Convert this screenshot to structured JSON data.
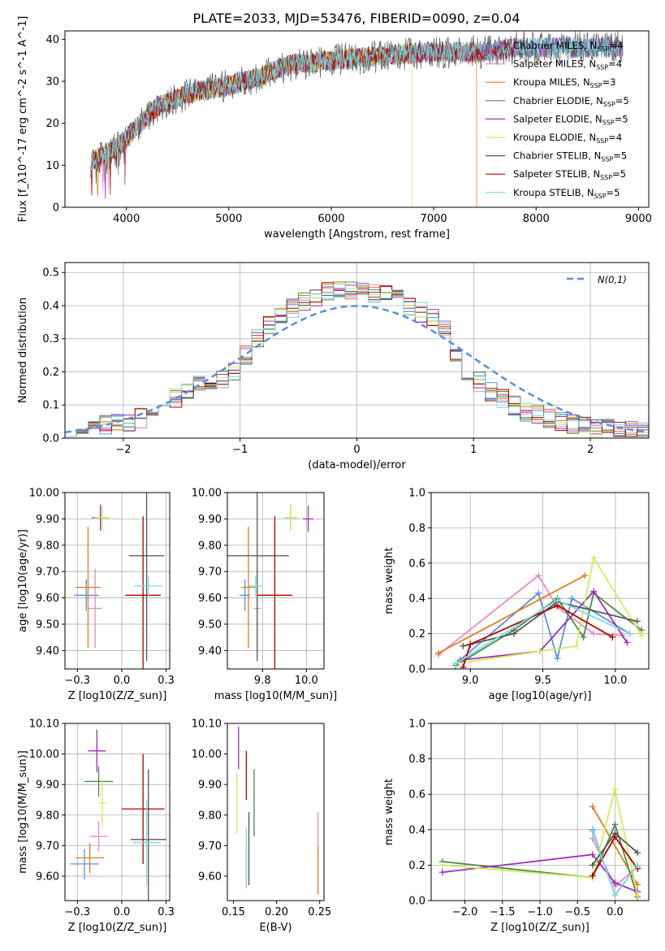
{
  "figure_title": "PLATE=2033, MJD=53476, FIBERID=0090, z=0.04",
  "series_colors": [
    "#5b8fdd",
    "#e78ac3",
    "#e07b1f",
    "#4a8a4a",
    "#9b30b5",
    "#d4ea5b",
    "#555555",
    "#b00000",
    "#7fd7e0"
  ],
  "chart_data": [
    {
      "id": "spectrum",
      "type": "line",
      "xlabel": "wavelength [Angstrom, rest frame]",
      "ylabel": "Flux [f_λ10^-17 erg cm^-2 s^-1 A^-1]",
      "xlim": [
        3400,
        9100
      ],
      "ylim": [
        0,
        42
      ],
      "xticks": [
        4000,
        5000,
        6000,
        7000,
        8000,
        9000
      ],
      "yticks": [
        0,
        10,
        20,
        30,
        40
      ],
      "grid": false,
      "legend_position": "top-right",
      "series": [
        {
          "name": "Chabrier MILES, N_SSP=4",
          "color": "#5b8fdd"
        },
        {
          "name": "Salpeter MILES, N_SSP=4",
          "color": "#e78ac3"
        },
        {
          "name": "Kroupa MILES, N_SSP=3",
          "color": "#e07b1f"
        },
        {
          "name": "Chabrier ELODIE, N_SSP=5",
          "color": "#4a8a4a"
        },
        {
          "name": "Salpeter ELODIE, N_SSP=5",
          "color": "#9b30b5"
        },
        {
          "name": "Kroupa ELODIE, N_SSP=4",
          "color": "#d4ea5b"
        },
        {
          "name": "Chabrier STELIB, N_SSP=5",
          "color": "#555555"
        },
        {
          "name": "Salpeter STELIB, N_SSP=5",
          "color": "#b00000"
        },
        {
          "name": "Kroupa STELIB, N_SSP=5",
          "color": "#7fd7e0"
        }
      ],
      "continuum": {
        "x": [
          3650,
          3900,
          4100,
          4300,
          4600,
          5000,
          5300,
          5600,
          6000,
          6500,
          7000,
          7500,
          7800
        ],
        "y": [
          11,
          14,
          19,
          24,
          27,
          29,
          31,
          34,
          35,
          36,
          37,
          37,
          38
        ]
      }
    },
    {
      "id": "residuals",
      "type": "histogram",
      "xlabel": "(data-model)/error",
      "ylabel": "Normed distribution",
      "xlim": [
        -2.5,
        2.5
      ],
      "ylim": [
        0,
        0.53
      ],
      "xticks": [
        -2,
        -1,
        0,
        1,
        2
      ],
      "yticks": [
        0.0,
        0.1,
        0.2,
        0.3,
        0.4,
        0.5
      ],
      "grid": true,
      "legend_position": "top-right",
      "reference": {
        "name": "N(0,1)",
        "color": "#5b8fdd"
      },
      "bin_width": 0.1,
      "profile": [
        0.02,
        0.03,
        0.04,
        0.04,
        0.05,
        0.05,
        0.06,
        0.08,
        0.1,
        0.12,
        0.14,
        0.16,
        0.17,
        0.18,
        0.2,
        0.25,
        0.3,
        0.34,
        0.37,
        0.39,
        0.41,
        0.42,
        0.44,
        0.45,
        0.45,
        0.45,
        0.44,
        0.44,
        0.42,
        0.4,
        0.38,
        0.36,
        0.33,
        0.26,
        0.2,
        0.17,
        0.14,
        0.12,
        0.1,
        0.08,
        0.07,
        0.06,
        0.05,
        0.04,
        0.04,
        0.03,
        0.03,
        0.02,
        0.02,
        0.02
      ]
    },
    {
      "id": "age-vs-Z",
      "type": "scatter",
      "xlabel": "Z [log10(Z/Z_sun)]",
      "ylabel": "age [log10(age/yr)]",
      "xlim": [
        -0.32,
        0.27
      ],
      "ylim": [
        9.33,
        10.0
      ],
      "xticks": [
        -0.25,
        0.0,
        0.25
      ],
      "yticks": [
        9.4,
        9.5,
        9.6,
        9.7,
        9.8,
        9.9,
        10.0
      ],
      "grid": true,
      "points": [
        {
          "x": -0.2,
          "y": 9.61,
          "xerr": 0.07,
          "yerr": 0.06,
          "color": "#5b8fdd"
        },
        {
          "x": -0.15,
          "y": 9.56,
          "xerr": 0.04,
          "yerr": 0.15,
          "color": "#e78ac3"
        },
        {
          "x": -0.19,
          "y": 9.64,
          "xerr": 0.07,
          "yerr": 0.23,
          "color": "#e07b1f"
        },
        {
          "x": -0.12,
          "y": 9.905,
          "xerr": 0.05,
          "yerr": 0.04,
          "color": "#4a8a4a"
        },
        {
          "x": -0.12,
          "y": 9.905,
          "xerr": 0.02,
          "yerr": 0.05,
          "color": "#9b30b5"
        },
        {
          "x": -0.11,
          "y": 9.905,
          "xerr": 0.04,
          "yerr": 0.05,
          "color": "#d4ea5b"
        },
        {
          "x": 0.14,
          "y": 9.76,
          "xerr": 0.1,
          "yerr": 0.4,
          "color": "#555555"
        },
        {
          "x": 0.12,
          "y": 9.61,
          "xerr": 0.1,
          "yerr": 0.3,
          "color": "#b00000"
        },
        {
          "x": 0.15,
          "y": 9.645,
          "xerr": 0.08,
          "yerr": 0.04,
          "color": "#7fd7e0"
        }
      ]
    },
    {
      "id": "age-vs-mass",
      "type": "scatter",
      "xlabel": "mass [log10(M/M_sun)]",
      "ylabel": "",
      "xlim": [
        9.55,
        10.1
      ],
      "ylim": [
        9.33,
        10.0
      ],
      "xticks": [
        9.75,
        10.0
      ],
      "yticks": [
        9.4,
        9.5,
        9.6,
        9.7,
        9.8,
        9.9,
        10.0
      ],
      "grid": true,
      "points": [
        {
          "x": 9.65,
          "y": 9.61,
          "xerr": 0.03,
          "yerr": 0.06,
          "color": "#5b8fdd"
        },
        {
          "x": 9.72,
          "y": 9.56,
          "xerr": 0.02,
          "yerr": 0.15,
          "color": "#e78ac3"
        },
        {
          "x": 9.67,
          "y": 9.64,
          "xerr": 0.04,
          "yerr": 0.23,
          "color": "#e07b1f"
        },
        {
          "x": 9.91,
          "y": 9.905,
          "xerr": 0.04,
          "yerr": 0.05,
          "color": "#4a8a4a"
        },
        {
          "x": 10.01,
          "y": 9.9,
          "xerr": 0.03,
          "yerr": 0.05,
          "color": "#9b30b5"
        },
        {
          "x": 9.91,
          "y": 9.905,
          "xerr": 0.04,
          "yerr": 0.05,
          "color": "#d4ea5b"
        },
        {
          "x": 9.72,
          "y": 9.76,
          "xerr": 0.18,
          "yerr": 0.4,
          "color": "#555555"
        },
        {
          "x": 9.82,
          "y": 9.61,
          "xerr": 0.1,
          "yerr": 0.3,
          "color": "#b00000"
        },
        {
          "x": 9.71,
          "y": 9.645,
          "xerr": 0.04,
          "yerr": 0.04,
          "color": "#7fd7e0"
        }
      ]
    },
    {
      "id": "weight-vs-age",
      "type": "line",
      "xlabel": "age  [log10(age/yr)]",
      "ylabel": "mass weight",
      "xlim": [
        8.73,
        10.23
      ],
      "ylim": [
        0,
        1
      ],
      "xticks": [
        9.0,
        9.5,
        10.0
      ],
      "yticks": [
        0.0,
        0.2,
        0.4,
        0.6,
        0.8,
        1.0
      ],
      "grid": true,
      "series": [
        {
          "color": "#5b8fdd",
          "x": [
            8.9,
            9.47,
            9.6,
            9.7,
            10.1
          ],
          "y": [
            0.03,
            0.43,
            0.06,
            0.4,
            0.2
          ]
        },
        {
          "color": "#e78ac3",
          "x": [
            8.78,
            9.47,
            9.6,
            9.85,
            10.05
          ],
          "y": [
            0.08,
            0.53,
            0.35,
            0.2,
            0.19
          ]
        },
        {
          "color": "#e07b1f",
          "x": [
            8.78,
            9.79
          ],
          "y": [
            0.09,
            0.53
          ]
        },
        {
          "color": "#4a8a4a",
          "x": [
            8.9,
            9.3,
            9.6,
            9.78,
            9.85,
            10.18
          ],
          "y": [
            0.02,
            0.22,
            0.4,
            0.18,
            0.43,
            0.22
          ]
        },
        {
          "color": "#9b30b5",
          "x": [
            8.93,
            9.48,
            9.85,
            10.08
          ],
          "y": [
            0.05,
            0.1,
            0.44,
            0.15
          ]
        },
        {
          "color": "#d4ea5b",
          "x": [
            8.9,
            9.48,
            9.73,
            9.85,
            10.18
          ],
          "y": [
            0.03,
            0.1,
            0.13,
            0.63,
            0.19
          ]
        },
        {
          "color": "#555555",
          "x": [
            8.95,
            9.3,
            9.6,
            10.15
          ],
          "y": [
            0.13,
            0.2,
            0.38,
            0.27
          ]
        },
        {
          "color": "#b00000",
          "x": [
            8.95,
            9.0,
            9.6,
            9.98
          ],
          "y": [
            0.01,
            0.14,
            0.36,
            0.18
          ]
        },
        {
          "color": "#7fd7e0",
          "x": [
            8.9,
            9.6,
            10.1
          ],
          "y": [
            0.03,
            0.39,
            0.2
          ]
        }
      ]
    },
    {
      "id": "mass-vs-Z",
      "type": "scatter",
      "xlabel": "Z [log10(Z/Z_sun)]",
      "ylabel": "mass [log10(M/M_sun)]",
      "xlim": [
        -0.32,
        0.27
      ],
      "ylim": [
        9.52,
        10.1
      ],
      "xticks": [
        -0.25,
        0.0,
        0.25
      ],
      "yticks": [
        9.6,
        9.7,
        9.8,
        9.9,
        10.0,
        10.1
      ],
      "grid": true,
      "points": [
        {
          "x": -0.21,
          "y": 9.64,
          "xerr": 0.08,
          "yerr": 0.05,
          "color": "#5b8fdd"
        },
        {
          "x": -0.13,
          "y": 9.73,
          "xerr": 0.05,
          "yerr": 0.05,
          "color": "#e78ac3"
        },
        {
          "x": -0.18,
          "y": 9.66,
          "xerr": 0.08,
          "yerr": 0.05,
          "color": "#e07b1f"
        },
        {
          "x": -0.13,
          "y": 9.91,
          "xerr": 0.08,
          "yerr": 0.05,
          "color": "#4a8a4a"
        },
        {
          "x": -0.14,
          "y": 10.01,
          "xerr": 0.05,
          "yerr": 0.07,
          "color": "#9b30b5"
        },
        {
          "x": -0.11,
          "y": 9.84,
          "xerr": 0.02,
          "yerr": 0.08,
          "color": "#d4ea5b"
        },
        {
          "x": 0.15,
          "y": 9.72,
          "xerr": 0.1,
          "yerr": 0.23,
          "color": "#555555"
        },
        {
          "x": 0.12,
          "y": 9.82,
          "xerr": 0.12,
          "yerr": 0.18,
          "color": "#b00000"
        },
        {
          "x": 0.14,
          "y": 9.71,
          "xerr": 0.08,
          "yerr": 0.14,
          "color": "#7fd7e0"
        }
      ]
    },
    {
      "id": "mass-vs-ebv",
      "type": "scatter",
      "xlabel": "E(B-V)",
      "ylabel": "",
      "xlim": [
        0.143,
        0.255
      ],
      "ylim": [
        9.52,
        10.1
      ],
      "xticks": [
        0.15,
        0.2,
        0.25
      ],
      "yticks": [
        9.6,
        9.7,
        9.8,
        9.9,
        10.0,
        10.1
      ],
      "grid": false,
      "points": [
        {
          "x": 0.165,
          "y": 9.64,
          "yerr": 0.06,
          "color": "#5b8fdd"
        },
        {
          "x": 0.248,
          "y": 9.73,
          "yerr": 0.08,
          "color": "#e78ac3"
        },
        {
          "x": 0.248,
          "y": 9.62,
          "yerr": 0.08,
          "color": "#e07b1f"
        },
        {
          "x": 0.174,
          "y": 9.84,
          "yerr": 0.11,
          "color": "#4a8a4a"
        },
        {
          "x": 0.156,
          "y": 10.02,
          "yerr": 0.07,
          "color": "#9b30b5"
        },
        {
          "x": 0.154,
          "y": 9.84,
          "yerr": 0.1,
          "color": "#d4ea5b"
        },
        {
          "x": 0.168,
          "y": 9.69,
          "yerr": 0.12,
          "color": "#555555"
        },
        {
          "x": 0.165,
          "y": 9.93,
          "yerr": 0.08,
          "color": "#b00000"
        },
        {
          "x": 0.165,
          "y": 9.66,
          "yerr": 0.1,
          "color": "#7fd7e0"
        }
      ]
    },
    {
      "id": "weight-vs-Z",
      "type": "line",
      "xlabel": "Z [log10(Z/Z_sun)]",
      "ylabel": "mass weight",
      "xlim": [
        -2.45,
        0.45
      ],
      "ylim": [
        0,
        1
      ],
      "xticks": [
        -2.0,
        -1.5,
        -1.0,
        -0.5,
        0.0
      ],
      "yticks": [
        0.0,
        0.2,
        0.4,
        0.6,
        0.8,
        1.0
      ],
      "grid": true,
      "series": [
        {
          "color": "#5b8fdd",
          "x": [
            -0.3,
            0.0,
            0.3
          ],
          "y": [
            0.4,
            0.03,
            0.2
          ]
        },
        {
          "color": "#e78ac3",
          "x": [
            -0.3,
            0.0,
            0.3
          ],
          "y": [
            0.35,
            0.08,
            0.19
          ]
        },
        {
          "color": "#e07b1f",
          "x": [
            -0.3,
            0.3
          ],
          "y": [
            0.53,
            0.09
          ]
        },
        {
          "color": "#4a8a4a",
          "x": [
            -2.3,
            -0.3,
            0.0,
            0.3
          ],
          "y": [
            0.22,
            0.13,
            0.43,
            0.02
          ]
        },
        {
          "color": "#9b30b5",
          "x": [
            -2.3,
            -0.3,
            0.0,
            0.3
          ],
          "y": [
            0.16,
            0.26,
            0.1,
            0.05
          ]
        },
        {
          "color": "#d4ea5b",
          "x": [
            -2.3,
            -0.3,
            0.0,
            0.3
          ],
          "y": [
            0.2,
            0.13,
            0.63,
            0.03
          ]
        },
        {
          "color": "#555555",
          "x": [
            -0.3,
            0.0,
            0.3
          ],
          "y": [
            0.2,
            0.38,
            0.27
          ]
        },
        {
          "color": "#b00000",
          "x": [
            -0.3,
            0.0,
            0.3
          ],
          "y": [
            0.14,
            0.36,
            0.18
          ]
        },
        {
          "color": "#7fd7e0",
          "x": [
            -0.3,
            0.0,
            0.3
          ],
          "y": [
            0.39,
            0.03,
            0.2
          ]
        }
      ]
    }
  ]
}
